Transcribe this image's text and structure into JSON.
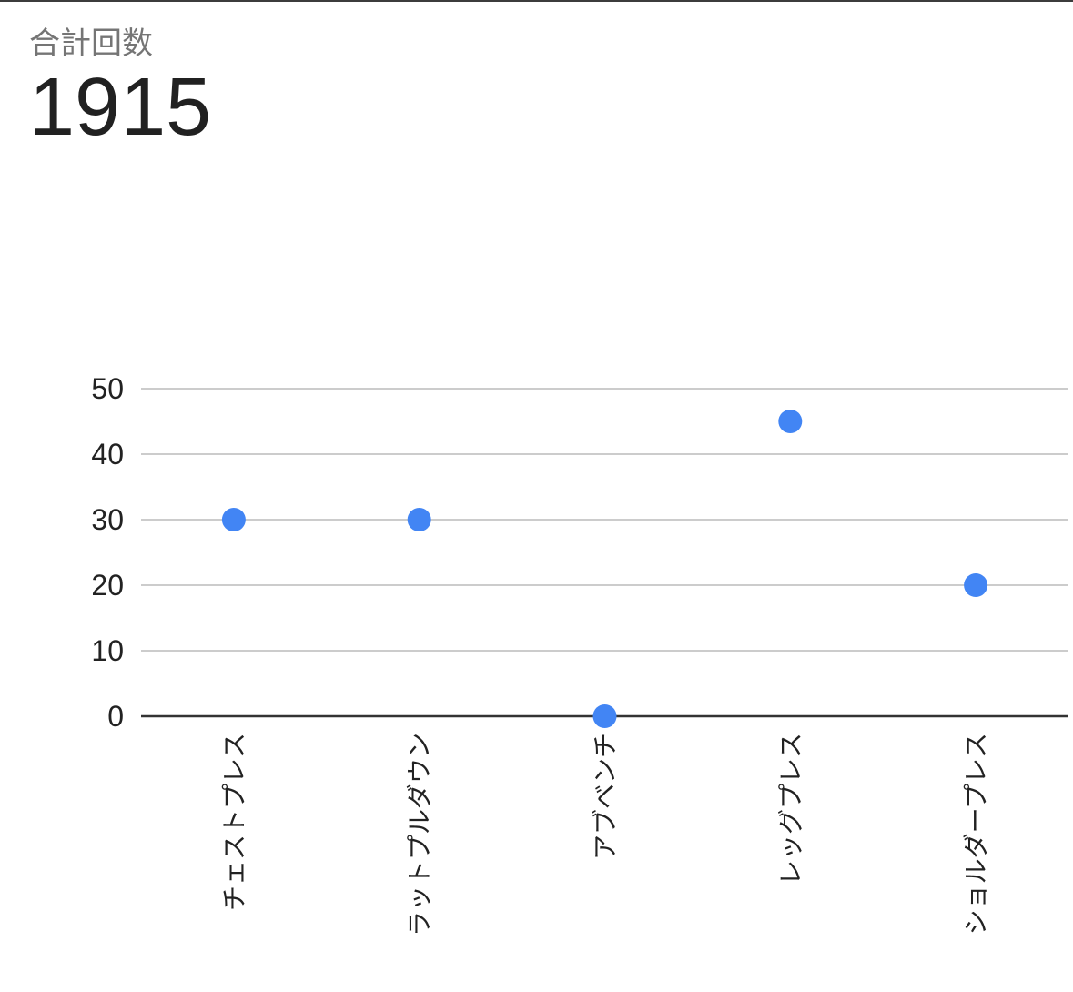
{
  "scorecard": {
    "label": "合計回数",
    "value": "1915"
  },
  "chart_data": {
    "type": "scatter",
    "title": "",
    "xlabel": "",
    "ylabel": "",
    "categories": [
      "チェストプレス",
      "ラットプルダウン",
      "アブベンチ",
      "レッグプレス",
      "ショルダープレス"
    ],
    "values": [
      30,
      30,
      0,
      45,
      20
    ],
    "ylim": [
      0,
      50
    ],
    "yticks": [
      0,
      10,
      20,
      30,
      40,
      50
    ],
    "grid": true,
    "legend": "none",
    "colors": {
      "point": "#4285f4",
      "grid": "#cccccc",
      "baseline": "#333333"
    }
  }
}
